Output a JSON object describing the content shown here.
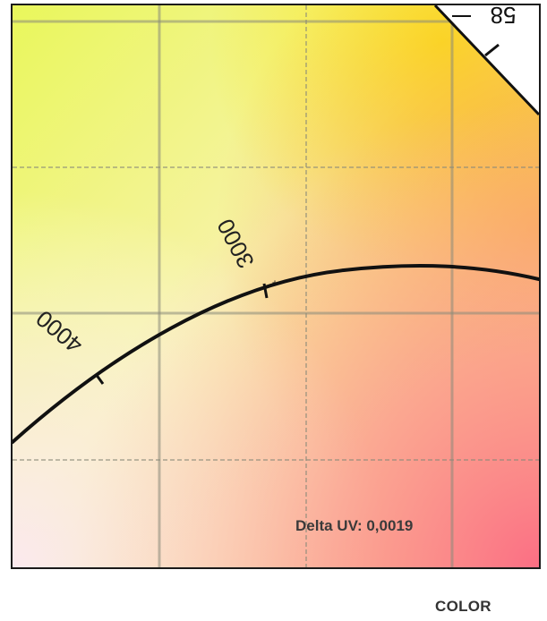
{
  "chart": {
    "temperature_labels": {
      "t4000": "4000",
      "t3000": "3000",
      "t_corner": "58"
    },
    "cursor_marker": "+"
  },
  "readout": {
    "delta_uv": "Delta UV: 0,0019"
  },
  "footer": {
    "label": "COLOR"
  }
}
